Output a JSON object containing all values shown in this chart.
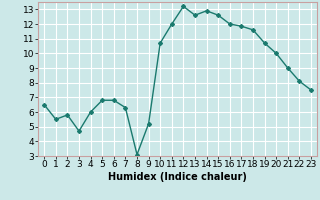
{
  "x": [
    0,
    1,
    2,
    3,
    4,
    5,
    6,
    7,
    8,
    9,
    10,
    11,
    12,
    13,
    14,
    15,
    16,
    17,
    18,
    19,
    20,
    21,
    22,
    23
  ],
  "y": [
    6.5,
    5.5,
    5.8,
    4.7,
    6.0,
    6.8,
    6.8,
    6.3,
    3.1,
    5.2,
    10.7,
    12.0,
    13.2,
    12.6,
    12.9,
    12.6,
    12.0,
    11.85,
    11.6,
    10.7,
    10.0,
    9.0,
    8.1,
    7.5
  ],
  "line_color": "#1a7a6e",
  "marker": "D",
  "markersize": 2,
  "linewidth": 1.0,
  "bg_color": "#cce8e8",
  "grid_color": "#ffffff",
  "xlabel": "Humidex (Indice chaleur)",
  "xlim": [
    -0.5,
    23.5
  ],
  "ylim": [
    3,
    13.5
  ],
  "yticks": [
    3,
    4,
    5,
    6,
    7,
    8,
    9,
    10,
    11,
    12,
    13
  ],
  "xticks": [
    0,
    1,
    2,
    3,
    4,
    5,
    6,
    7,
    8,
    9,
    10,
    11,
    12,
    13,
    14,
    15,
    16,
    17,
    18,
    19,
    20,
    21,
    22,
    23
  ],
  "xlabel_fontsize": 7,
  "tick_fontsize": 6.5,
  "grid_linewidth": 0.8
}
